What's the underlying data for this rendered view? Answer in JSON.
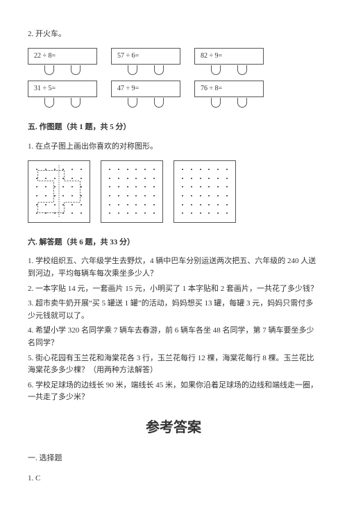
{
  "q2": {
    "label": "2. 开火车。",
    "row1": [
      {
        "expr": "22 ÷ 8="
      },
      {
        "expr": "57 ÷ 6="
      },
      {
        "expr": "82 ÷ 9="
      }
    ],
    "row2": [
      {
        "expr": "31 ÷ 5="
      },
      {
        "expr": "47 ÷ 9="
      },
      {
        "expr": "76 ÷ 8="
      }
    ]
  },
  "section5": {
    "title": "五. 作图题（共 1 题，共 5 分）",
    "q1": "1. 在点子图上画出你喜欢的对称图形。",
    "grid": {
      "cols": 6,
      "rows": 6,
      "border_color": "#555555",
      "dot_color": "#333333",
      "shape_stroke": "#333333",
      "shape_dash": "3,2"
    }
  },
  "section6": {
    "title": "六. 解答题（共 6 题，共 33 分）",
    "questions": [
      "1. 学校组织五、六年级学生去野炊，4 辆中巴车分别运送两次把五、六年级的 240 人送到河边，平均每辆车每次乘坐多少人？",
      "2. 一本字贴 14 元，一套画片 15 元，小明买了 1 本字贴和 2 套画片，一共花了多少钱？",
      "3. 超市卖牛奶开展“买 5 罐送 1 罐”的活动，妈妈想买 13 罐，每罐 3 元，妈妈只需付多少元钱就可以了。",
      "4. 希望小学 320 名同学乘 7 辆车去春游，前 6 辆车各坐 48 名同学，第 7 辆车要坐多少名同学？",
      "5. 街心花园有玉兰花和海棠花各 3 行，玉兰花每行 12 棵，海棠花每行 8 棵。玉兰花比海棠花多多少棵？（用两种方法解答）",
      "6. 学校足球场的边线长 90 米，端线长 45 米，如果你沿着足球场的边线和端线走一圈，一共走了多少米？"
    ]
  },
  "answers": {
    "title": "参考答案",
    "section1_title": "一. 选择题",
    "a1": "1. C"
  },
  "colors": {
    "text": "#333333",
    "border": "#555555",
    "background": "#ffffff"
  }
}
